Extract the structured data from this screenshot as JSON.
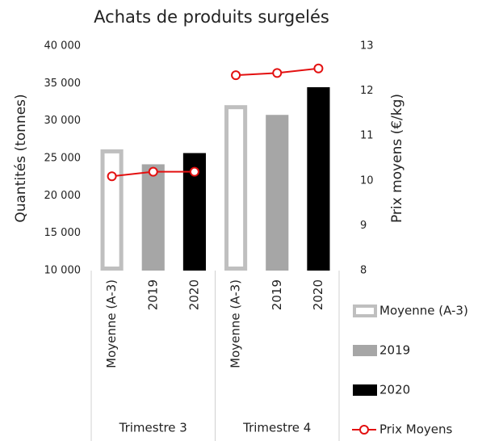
{
  "chart_data": {
    "type": "bar",
    "title": "Achats de produits surgelés",
    "y_label": "Quantités (tonnes)",
    "y2_label": "Prix moyens (€/kg)",
    "groups": [
      "Trimestre 3",
      "Trimestre 4"
    ],
    "categories": [
      "Moyenne (A-3)",
      "2019",
      "2020",
      "Moyenne (A-3)",
      "2019",
      "2020"
    ],
    "series": [
      {
        "name": "Moyenne (A-3)",
        "type": "bar",
        "style": "outline",
        "color": "#bfbfbf",
        "values": [
          26200,
          null,
          null,
          32100,
          null,
          null
        ]
      },
      {
        "name": "2019",
        "type": "bar",
        "color": "#a6a6a6",
        "values": [
          null,
          24200,
          null,
          null,
          30800,
          null
        ]
      },
      {
        "name": "2020",
        "type": "bar",
        "color": "#000000",
        "values": [
          null,
          null,
          25700,
          null,
          null,
          34500
        ]
      },
      {
        "name": "Prix Moyens",
        "type": "line",
        "axis": "y2",
        "color": "#e31010",
        "values": [
          10.1,
          10.2,
          10.2,
          12.35,
          12.4,
          12.5
        ]
      }
    ],
    "ylim": [
      10000,
      40000
    ],
    "yticks": [
      {
        "value": 10000,
        "label": "10 000"
      },
      {
        "value": 15000,
        "label": "15 000"
      },
      {
        "value": 20000,
        "label": "20 000"
      },
      {
        "value": 25000,
        "label": "25 000"
      },
      {
        "value": 30000,
        "label": "30 000"
      },
      {
        "value": 35000,
        "label": "35 000"
      },
      {
        "value": 40000,
        "label": "40 000"
      }
    ],
    "y2lim": [
      8,
      13
    ],
    "y2ticks": [
      8,
      9,
      10,
      11,
      12,
      13
    ],
    "legend": "right"
  }
}
